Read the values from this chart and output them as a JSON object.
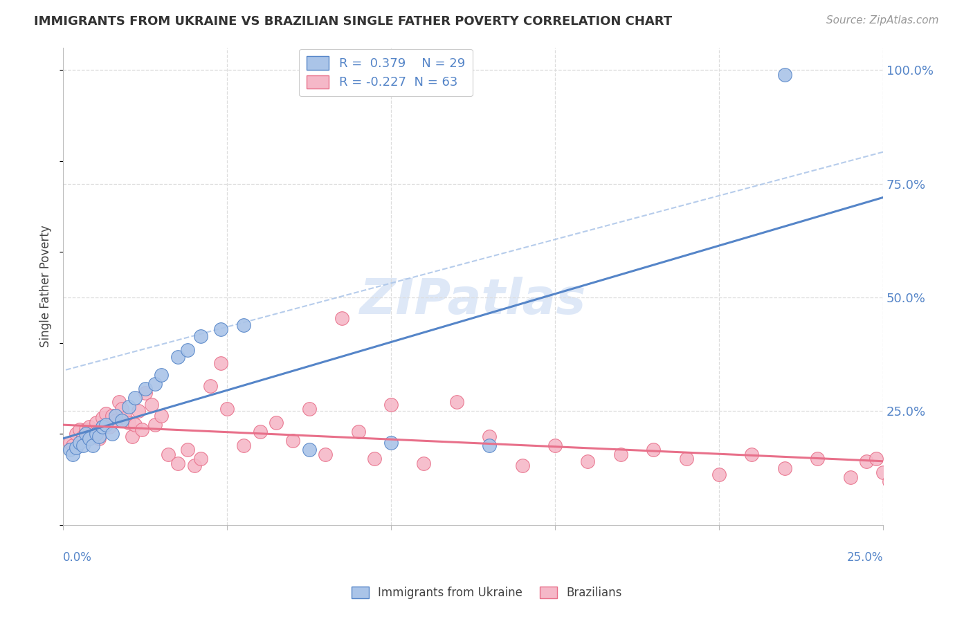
{
  "title": "IMMIGRANTS FROM UKRAINE VS BRAZILIAN SINGLE FATHER POVERTY CORRELATION CHART",
  "source": "Source: ZipAtlas.com",
  "ylabel": "Single Father Poverty",
  "ukraine_R": 0.379,
  "ukraine_N": 29,
  "brazil_R": -0.227,
  "brazil_N": 63,
  "ukraine_color": "#aac4e8",
  "brazil_color": "#f5b8c8",
  "ukraine_line_color": "#5585c8",
  "brazil_line_color": "#e8708a",
  "dashed_line_color": "#aac4e8",
  "watermark_color": "#d0dff5",
  "ukraine_scatter_x": [
    0.002,
    0.003,
    0.004,
    0.005,
    0.006,
    0.007,
    0.008,
    0.009,
    0.01,
    0.011,
    0.012,
    0.013,
    0.015,
    0.016,
    0.018,
    0.02,
    0.022,
    0.025,
    0.028,
    0.03,
    0.035,
    0.038,
    0.042,
    0.048,
    0.055,
    0.075,
    0.1,
    0.13,
    0.22
  ],
  "ukraine_scatter_y": [
    0.165,
    0.155,
    0.17,
    0.18,
    0.175,
    0.2,
    0.19,
    0.175,
    0.2,
    0.195,
    0.215,
    0.22,
    0.2,
    0.24,
    0.23,
    0.26,
    0.28,
    0.3,
    0.31,
    0.33,
    0.37,
    0.385,
    0.415,
    0.43,
    0.44,
    0.165,
    0.18,
    0.175,
    0.99
  ],
  "brazil_scatter_x": [
    0.002,
    0.003,
    0.004,
    0.005,
    0.006,
    0.007,
    0.008,
    0.009,
    0.01,
    0.011,
    0.012,
    0.013,
    0.014,
    0.015,
    0.016,
    0.017,
    0.018,
    0.019,
    0.02,
    0.021,
    0.022,
    0.023,
    0.024,
    0.025,
    0.027,
    0.028,
    0.03,
    0.032,
    0.035,
    0.038,
    0.04,
    0.042,
    0.045,
    0.048,
    0.05,
    0.055,
    0.06,
    0.065,
    0.07,
    0.075,
    0.08,
    0.085,
    0.09,
    0.095,
    0.1,
    0.11,
    0.12,
    0.13,
    0.14,
    0.15,
    0.16,
    0.17,
    0.18,
    0.19,
    0.2,
    0.21,
    0.22,
    0.23,
    0.24,
    0.245,
    0.248,
    0.25,
    0.252
  ],
  "brazil_scatter_y": [
    0.18,
    0.175,
    0.2,
    0.21,
    0.195,
    0.21,
    0.215,
    0.205,
    0.225,
    0.19,
    0.235,
    0.245,
    0.215,
    0.24,
    0.23,
    0.27,
    0.255,
    0.235,
    0.225,
    0.195,
    0.22,
    0.25,
    0.21,
    0.29,
    0.265,
    0.22,
    0.24,
    0.155,
    0.135,
    0.165,
    0.13,
    0.145,
    0.305,
    0.355,
    0.255,
    0.175,
    0.205,
    0.225,
    0.185,
    0.255,
    0.155,
    0.455,
    0.205,
    0.145,
    0.265,
    0.135,
    0.27,
    0.195,
    0.13,
    0.175,
    0.14,
    0.155,
    0.165,
    0.145,
    0.11,
    0.155,
    0.125,
    0.145,
    0.105,
    0.14,
    0.145,
    0.115,
    0.095
  ],
  "xlim": [
    0.0,
    0.25
  ],
  "ylim": [
    0.0,
    1.05
  ],
  "yticks": [
    0.0,
    0.25,
    0.5,
    0.75,
    1.0
  ],
  "ytick_labels": [
    "",
    "25.0%",
    "50.0%",
    "75.0%",
    "100.0%"
  ],
  "grid_color": "#dddddd",
  "spine_color": "#bbbbbb"
}
